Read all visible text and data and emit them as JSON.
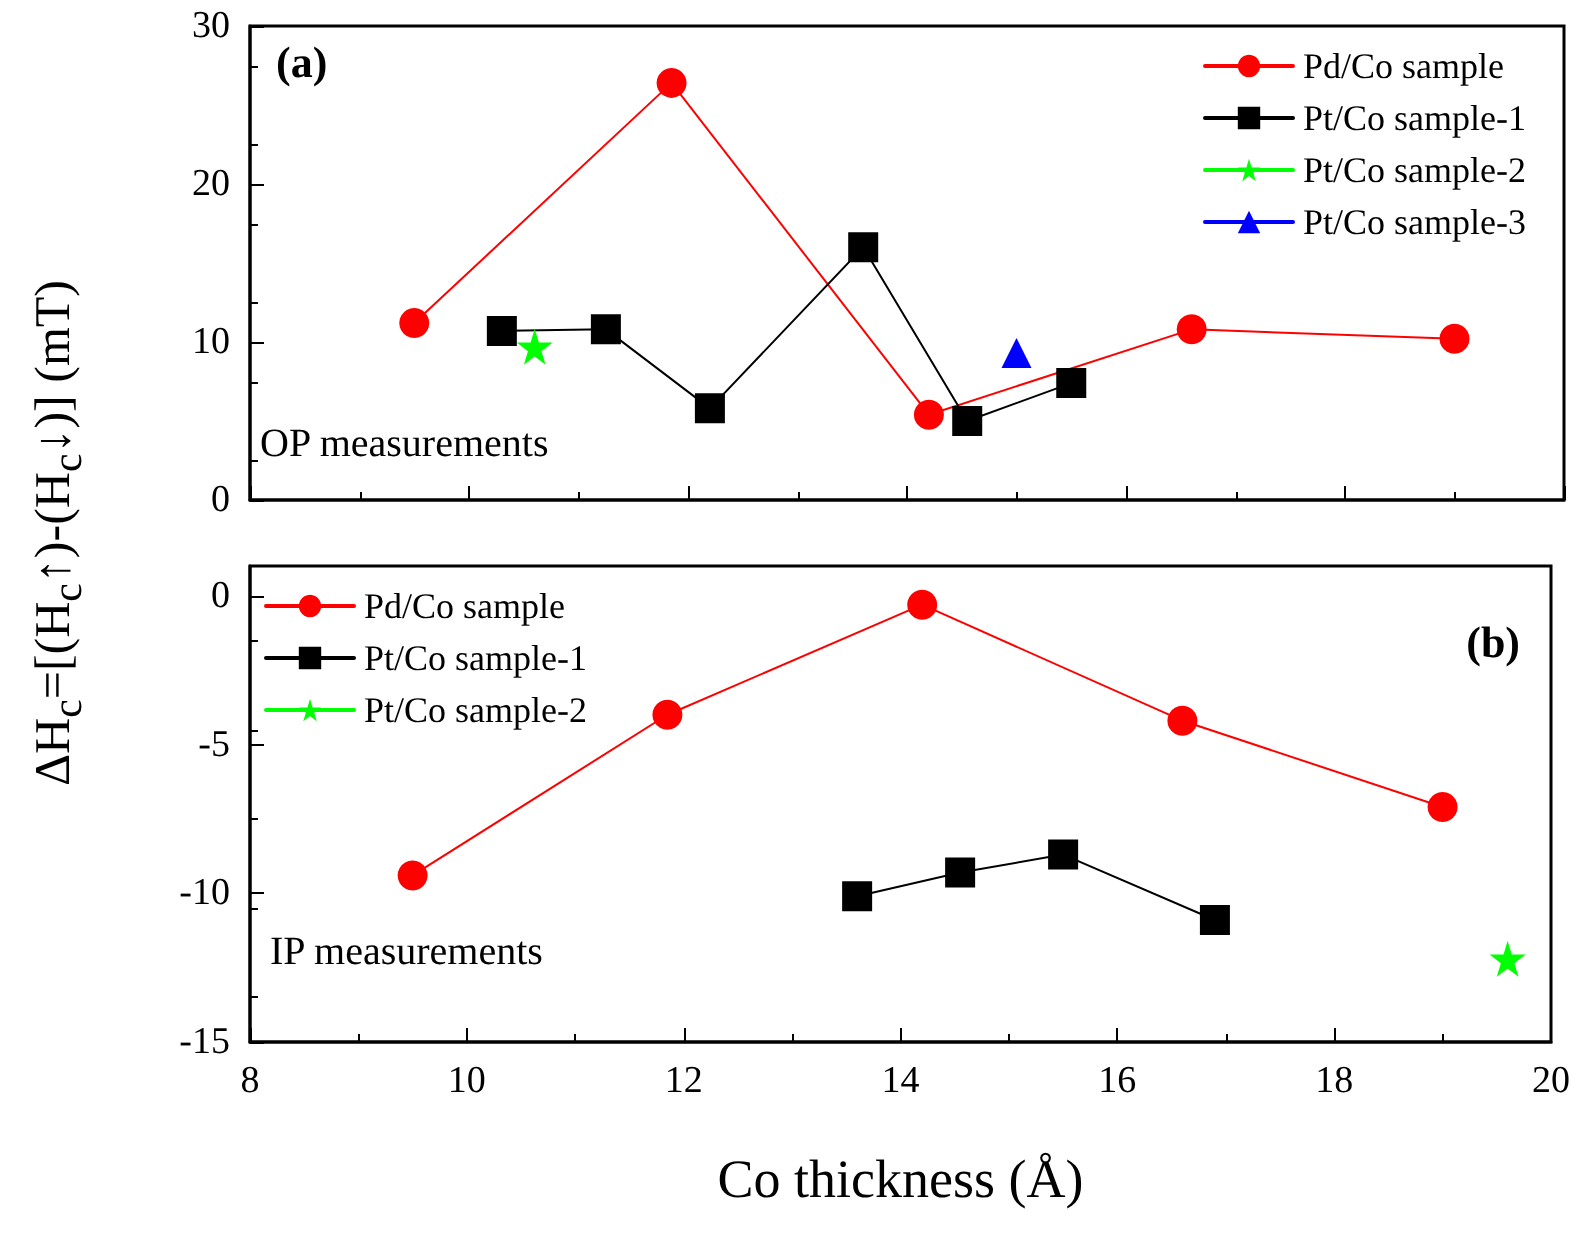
{
  "chart_data": [
    {
      "type": "line",
      "ylabel": "ΔH$_{c}$=[(H$_{c}$↑)-(H$_{c}$↓)] (mT)",
      "annotations": [
        "(a)",
        "OP measurements"
      ],
      "xlim": [
        8,
        20
      ],
      "xticks": [
        8,
        10,
        12,
        14,
        16,
        18,
        20
      ],
      "ylim": [
        0,
        30
      ],
      "yticks": [
        0,
        10,
        20,
        30
      ],
      "tick_labels": "y",
      "grid": false,
      "legend": "top right",
      "line_style": "solid",
      "series": [
        {
          "name": "Pd/Co sample",
          "color": "#ff0000",
          "marker": "circle",
          "x": [
            9.5,
            11.85,
            14.2,
            16.6,
            19.0
          ],
          "values": [
            11.2,
            26.4,
            5.4,
            10.8,
            10.2
          ]
        },
        {
          "name": "Pt/Co sample-1",
          "color": "#000000",
          "marker": "square",
          "x": [
            10.3,
            11.25,
            12.2,
            13.6,
            14.55,
            15.5
          ],
          "values": [
            10.7,
            10.8,
            5.8,
            16.0,
            5.0,
            7.4
          ]
        },
        {
          "name": "Pt/Co sample-2",
          "color": "#00ff00",
          "marker": "star",
          "x": [
            10.6
          ],
          "values": [
            9.7
          ]
        },
        {
          "name": "Pt/Co sample-3",
          "color": "#0000ff",
          "marker": "triangle",
          "x": [
            15.0
          ],
          "values": [
            9.3
          ]
        }
      ]
    },
    {
      "type": "line",
      "xlabel": "Co thickness (Å)",
      "annotations": [
        "(b)",
        "IP measurements"
      ],
      "xlim": [
        8,
        20
      ],
      "xticks": [
        8,
        10,
        12,
        14,
        16,
        18,
        20
      ],
      "ylim": [
        -15,
        1
      ],
      "yticks": [
        -15,
        -10,
        -5,
        0
      ],
      "grid": false,
      "legend": "top left",
      "line_style": "solid",
      "series": [
        {
          "name": "Pd/Co sample",
          "color": "#ff0000",
          "marker": "circle",
          "x": [
            9.5,
            11.85,
            14.2,
            16.6,
            19.0
          ],
          "values": [
            -9.4,
            -4.0,
            -0.3,
            -4.2,
            -7.1
          ]
        },
        {
          "name": "Pt/Co sample-1",
          "color": "#000000",
          "marker": "square",
          "x": [
            13.6,
            14.55,
            15.5,
            16.9
          ],
          "values": [
            -10.1,
            -9.3,
            -8.7,
            -10.9
          ]
        },
        {
          "name": "Pt/Co sample-2",
          "color": "#00ff00",
          "marker": "star",
          "x": [
            19.6
          ],
          "values": [
            -12.2
          ]
        }
      ]
    }
  ]
}
